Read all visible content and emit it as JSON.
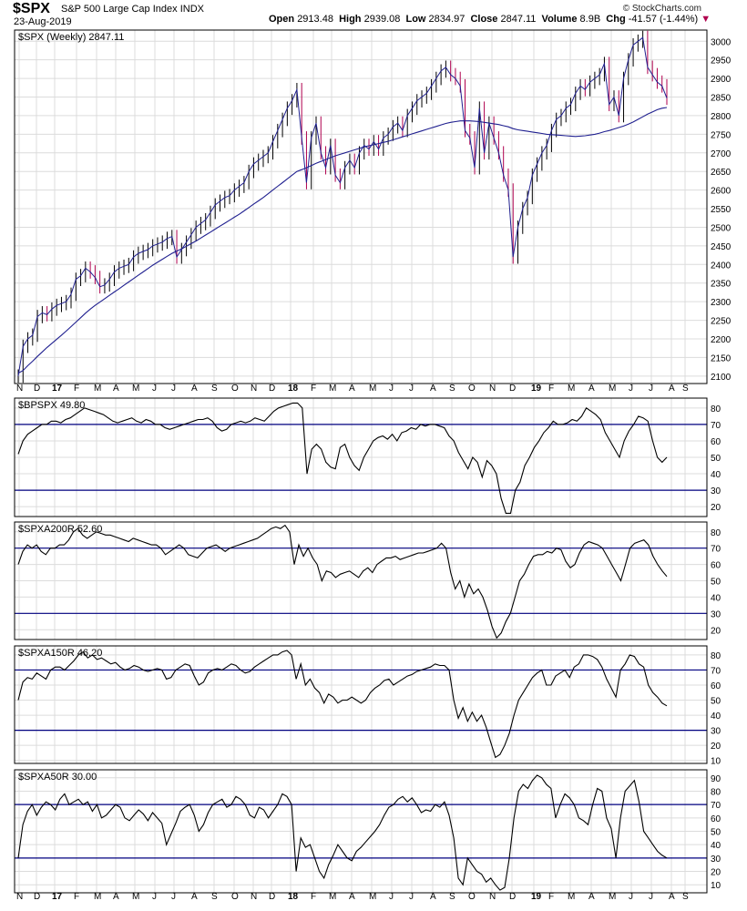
{
  "header": {
    "symbol": "$SPX",
    "name": "S&P 500 Large Cap Index",
    "exchange": "INDX",
    "date": "23-Aug-2019",
    "brand": "© StockCharts.com",
    "open_label": "Open",
    "open": "2913.48",
    "high_label": "High",
    "high": "2939.08",
    "low_label": "Low",
    "low": "2834.97",
    "close_label": "Close",
    "close": "2847.11",
    "volume_label": "Volume",
    "volume": "8.9B",
    "chg_label": "Chg",
    "chg": "-41.57 (-1.44%)",
    "chg_arrow": "▼"
  },
  "colors": {
    "up": "#000000",
    "down": "#b0004e",
    "ma": "#1f1f8f",
    "line": "#000000",
    "hline": "#000080",
    "grid": "#dcdcdc"
  },
  "chart_data": [
    {
      "type": "line",
      "label": "$SPX (Weekly) 2847.11",
      "ylim": [
        2080,
        3030
      ],
      "yticks": [
        2100,
        2150,
        2200,
        2250,
        2300,
        2350,
        2400,
        2450,
        2500,
        2550,
        2600,
        2650,
        2700,
        2750,
        2800,
        2850,
        2900,
        2950,
        3000
      ],
      "x_labels": [
        "N",
        "D",
        "17",
        "F",
        "M",
        "A",
        "M",
        "J",
        "J",
        "A",
        "S",
        "O",
        "N",
        "D",
        "18",
        "F",
        "M",
        "A",
        "M",
        "J",
        "J",
        "A",
        "S",
        "O",
        "N",
        "D",
        "19",
        "F",
        "M",
        "A",
        "M",
        "J",
        "J",
        "A",
        "S"
      ],
      "series": [
        {
          "values": [
            2100,
            2180,
            2200,
            2210,
            2260,
            2270,
            2265,
            2280,
            2290,
            2295,
            2300,
            2320,
            2360,
            2370,
            2390,
            2380,
            2365,
            2340,
            2345,
            2360,
            2380,
            2390,
            2395,
            2400,
            2420,
            2430,
            2435,
            2440,
            2450,
            2455,
            2460,
            2470,
            2475,
            2420,
            2440,
            2460,
            2480,
            2500,
            2510,
            2520,
            2540,
            2560,
            2570,
            2580,
            2585,
            2600,
            2610,
            2620,
            2650,
            2670,
            2680,
            2690,
            2700,
            2730,
            2760,
            2790,
            2820,
            2840,
            2870,
            2740,
            2620,
            2740,
            2780,
            2700,
            2660,
            2720,
            2640,
            2620,
            2660,
            2680,
            2660,
            2700,
            2720,
            2710,
            2730,
            2710,
            2740,
            2750,
            2770,
            2780,
            2760,
            2800,
            2820,
            2840,
            2850,
            2860,
            2880,
            2900,
            2920,
            2930,
            2910,
            2900,
            2880,
            2760,
            2740,
            2660,
            2820,
            2700,
            2780,
            2740,
            2700,
            2640,
            2600,
            2420,
            2500,
            2550,
            2580,
            2640,
            2670,
            2700,
            2720,
            2760,
            2790,
            2800,
            2820,
            2830,
            2860,
            2880,
            2870,
            2890,
            2900,
            2910,
            2940,
            2830,
            2850,
            2800,
            2900,
            2950,
            2990,
            3000,
            3010,
            2930,
            2910,
            2890,
            2880,
            2847
          ]
        },
        {
          "values": [
            2108,
            2115,
            2128,
            2140,
            2153,
            2165,
            2177,
            2188,
            2199,
            2210,
            2221,
            2233,
            2245,
            2257,
            2269,
            2280,
            2290,
            2299,
            2308,
            2317,
            2326,
            2335,
            2344,
            2353,
            2362,
            2371,
            2380,
            2389,
            2398,
            2406,
            2414,
            2422,
            2430,
            2436,
            2442,
            2449,
            2456,
            2463,
            2471,
            2479,
            2487,
            2495,
            2503,
            2511,
            2519,
            2527,
            2535,
            2544,
            2553,
            2562,
            2571,
            2580,
            2590,
            2600,
            2610,
            2620,
            2630,
            2640,
            2650,
            2655,
            2660,
            2666,
            2672,
            2677,
            2682,
            2687,
            2692,
            2696,
            2700,
            2704,
            2708,
            2712,
            2716,
            2719,
            2722,
            2725,
            2728,
            2731,
            2735,
            2739,
            2743,
            2747,
            2751,
            2755,
            2759,
            2763,
            2767,
            2771,
            2775,
            2779,
            2782,
            2784,
            2786,
            2786,
            2786,
            2785,
            2784,
            2782,
            2780,
            2778,
            2776,
            2773,
            2770,
            2765,
            2762,
            2760,
            2758,
            2756,
            2754,
            2752,
            2750,
            2749,
            2748,
            2747,
            2746,
            2745,
            2744,
            2745,
            2746,
            2748,
            2750,
            2753,
            2757,
            2760,
            2764,
            2768,
            2772,
            2777,
            2783,
            2790,
            2797,
            2804,
            2810,
            2816,
            2820,
            2822
          ]
        }
      ]
    },
    {
      "type": "line",
      "label": "$BPSPX 49.80",
      "ylim": [
        14,
        86
      ],
      "yticks": [
        20,
        30,
        40,
        50,
        60,
        70,
        80
      ],
      "hlines": [
        70,
        30
      ],
      "series": [
        {
          "values": [
            52,
            60,
            64,
            66,
            68,
            70,
            70,
            72,
            72,
            71,
            73,
            74,
            76,
            78,
            80,
            79,
            78,
            77,
            76,
            74,
            72,
            71,
            72,
            73,
            74,
            72,
            71,
            73,
            72,
            70,
            70,
            68,
            67,
            68,
            69,
            70,
            71,
            72,
            73,
            73,
            74,
            72,
            68,
            66,
            67,
            70,
            71,
            72,
            71,
            72,
            74,
            73,
            72,
            75,
            78,
            80,
            81,
            82,
            83,
            83,
            80,
            40,
            55,
            58,
            55,
            47,
            44,
            43,
            56,
            58,
            50,
            45,
            42,
            50,
            55,
            60,
            62,
            63,
            61,
            64,
            60,
            65,
            66,
            68,
            67,
            70,
            69,
            70,
            70,
            69,
            68,
            63,
            60,
            53,
            48,
            43,
            50,
            47,
            38,
            48,
            45,
            40,
            25,
            16,
            16,
            30,
            35,
            45,
            50,
            56,
            60,
            65,
            68,
            72,
            70,
            70,
            71,
            73,
            72,
            75,
            80,
            78,
            76,
            73,
            65,
            60,
            55,
            50,
            60,
            66,
            70,
            75,
            74,
            72,
            60,
            50,
            47,
            50
          ]
        }
      ]
    },
    {
      "type": "line",
      "label": "$SPXA200R 52.60",
      "ylim": [
        14,
        86
      ],
      "yticks": [
        20,
        30,
        40,
        50,
        60,
        70,
        80
      ],
      "hlines": [
        70,
        30
      ],
      "series": [
        {
          "values": [
            60,
            68,
            72,
            70,
            72,
            68,
            66,
            70,
            70,
            72,
            72,
            75,
            80,
            82,
            78,
            76,
            78,
            80,
            79,
            78,
            78,
            77,
            76,
            75,
            74,
            76,
            75,
            74,
            73,
            72,
            72,
            70,
            66,
            68,
            70,
            72,
            70,
            66,
            65,
            64,
            67,
            70,
            71,
            72,
            70,
            68,
            70,
            71,
            72,
            73,
            74,
            75,
            76,
            78,
            80,
            82,
            83,
            82,
            84,
            80,
            60,
            72,
            65,
            70,
            64,
            60,
            50,
            56,
            55,
            52,
            54,
            55,
            56,
            54,
            52,
            56,
            58,
            55,
            60,
            62,
            64,
            64,
            65,
            63,
            64,
            65,
            66,
            67,
            67,
            68,
            69,
            70,
            73,
            70,
            55,
            45,
            50,
            40,
            48,
            42,
            45,
            40,
            32,
            22,
            15,
            18,
            25,
            30,
            40,
            50,
            54,
            60,
            65,
            66,
            66,
            68,
            67,
            70,
            69,
            62,
            58,
            60,
            67,
            72,
            74,
            73,
            72,
            70,
            65,
            60,
            55,
            50,
            60,
            70,
            73,
            74,
            75,
            72,
            65,
            60,
            56,
            52.6
          ]
        }
      ]
    },
    {
      "type": "line",
      "label": "$SPXA150R 46.20",
      "ylim": [
        8,
        86
      ],
      "yticks": [
        10,
        20,
        30,
        40,
        50,
        60,
        70,
        80
      ],
      "hlines": [
        70,
        30
      ],
      "series": [
        {
          "values": [
            50,
            62,
            65,
            64,
            68,
            66,
            64,
            70,
            72,
            72,
            70,
            73,
            76,
            80,
            82,
            78,
            80,
            77,
            78,
            76,
            74,
            75,
            72,
            70,
            71,
            73,
            72,
            70,
            69,
            70,
            71,
            70,
            64,
            65,
            70,
            72,
            74,
            73,
            66,
            60,
            62,
            68,
            70,
            71,
            70,
            72,
            74,
            73,
            70,
            68,
            69,
            72,
            74,
            76,
            78,
            80,
            80,
            82,
            83,
            80,
            64,
            74,
            60,
            64,
            58,
            55,
            48,
            54,
            52,
            48,
            50,
            50,
            52,
            50,
            48,
            50,
            55,
            58,
            60,
            63,
            64,
            60,
            62,
            64,
            66,
            67,
            69,
            70,
            71,
            72,
            74,
            73,
            73,
            70,
            50,
            38,
            45,
            36,
            42,
            36,
            40,
            32,
            22,
            12,
            14,
            20,
            28,
            40,
            50,
            55,
            60,
            65,
            68,
            70,
            60,
            60,
            66,
            68,
            70,
            65,
            72,
            74,
            80,
            80,
            79,
            77,
            72,
            64,
            58,
            52,
            70,
            74,
            80,
            79,
            74,
            72,
            60,
            55,
            52,
            48,
            46.2
          ]
        }
      ]
    },
    {
      "type": "line",
      "label": "$SPXA50R 30.00",
      "ylim": [
        4,
        96
      ],
      "yticks": [
        10,
        20,
        30,
        40,
        50,
        60,
        70,
        80,
        90
      ],
      "hlines": [
        70,
        30
      ],
      "x_labels": [
        "N",
        "D",
        "17",
        "F",
        "M",
        "A",
        "M",
        "J",
        "J",
        "A",
        "S",
        "O",
        "N",
        "D",
        "18",
        "F",
        "M",
        "A",
        "M",
        "J",
        "J",
        "A",
        "S",
        "O",
        "N",
        "D",
        "19",
        "F",
        "M",
        "A",
        "M",
        "J",
        "J",
        "A",
        "S"
      ],
      "series": [
        {
          "values": [
            30,
            55,
            65,
            70,
            62,
            68,
            72,
            70,
            66,
            74,
            78,
            70,
            72,
            74,
            70,
            72,
            65,
            70,
            60,
            62,
            66,
            70,
            68,
            60,
            58,
            62,
            66,
            63,
            58,
            64,
            60,
            56,
            40,
            48,
            56,
            65,
            68,
            70,
            62,
            50,
            55,
            64,
            70,
            72,
            74,
            68,
            70,
            76,
            74,
            70,
            62,
            60,
            68,
            66,
            60,
            65,
            70,
            78,
            76,
            70,
            20,
            45,
            38,
            40,
            30,
            20,
            15,
            25,
            32,
            40,
            35,
            30,
            28,
            35,
            38,
            42,
            46,
            50,
            55,
            62,
            68,
            70,
            74,
            76,
            72,
            75,
            70,
            64,
            66,
            65,
            70,
            68,
            72,
            62,
            45,
            15,
            10,
            30,
            25,
            20,
            18,
            12,
            15,
            10,
            6,
            8,
            30,
            60,
            80,
            85,
            82,
            88,
            92,
            90,
            85,
            82,
            60,
            70,
            78,
            75,
            70,
            60,
            58,
            55,
            70,
            82,
            80,
            60,
            52,
            30,
            60,
            80,
            84,
            88,
            72,
            50,
            45,
            40,
            35,
            32,
            30
          ]
        }
      ]
    }
  ]
}
